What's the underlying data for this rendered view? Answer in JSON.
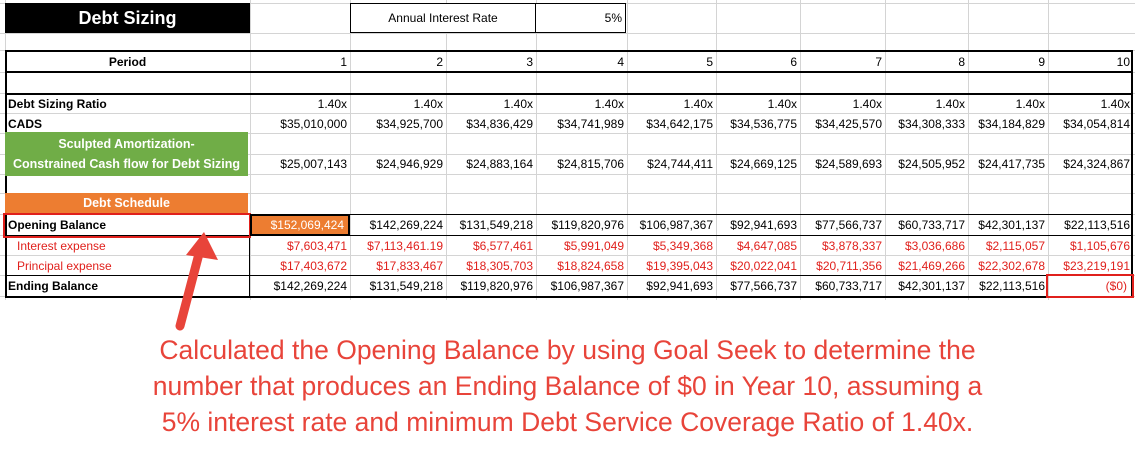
{
  "title": "Debt Sizing",
  "rate": {
    "label": "Annual Interest Rate",
    "value": "5%"
  },
  "period_label": "Period",
  "periods": [
    "1",
    "2",
    "3",
    "4",
    "5",
    "6",
    "7",
    "8",
    "9",
    "10"
  ],
  "rows": {
    "dscr": {
      "label": "Debt Sizing Ratio",
      "values": [
        "1.40x",
        "1.40x",
        "1.40x",
        "1.40x",
        "1.40x",
        "1.40x",
        "1.40x",
        "1.40x",
        "1.40x",
        "1.40x"
      ]
    },
    "cads": {
      "label": "CADS",
      "values": [
        "$35,010,000",
        "$34,925,700",
        "$34,836,429",
        "$34,741,989",
        "$34,642,175",
        "$34,536,775",
        "$34,425,570",
        "$34,308,333",
        "$34,184,829",
        "$34,054,814"
      ]
    },
    "sculpted": {
      "label_line1": "Sculpted Amortization-",
      "label_line2": "Constrained Cash flow for Debt Sizing",
      "values": [
        "$25,007,143",
        "$24,946,929",
        "$24,883,164",
        "$24,815,706",
        "$24,744,411",
        "$24,669,125",
        "$24,589,693",
        "$24,505,952",
        "$24,417,735",
        "$24,324,867"
      ]
    },
    "schedule_label": "Debt Schedule",
    "opening": {
      "label": "Opening Balance",
      "values": [
        "$152,069,424",
        "$142,269,224",
        "$131,549,218",
        "$119,820,976",
        "$106,987,367",
        "$92,941,693",
        "$77,566,737",
        "$60,733,717",
        "$42,301,137",
        "$22,113,516"
      ]
    },
    "interest": {
      "label": "Interest expense",
      "values": [
        "$7,603,471",
        "$7,113,461.19",
        "$6,577,461",
        "$5,991,049",
        "$5,349,368",
        "$4,647,085",
        "$3,878,337",
        "$3,036,686",
        "$2,115,057",
        "$1,105,676"
      ]
    },
    "principal": {
      "label": "Principal expense",
      "values": [
        "$17,403,672",
        "$17,833,467",
        "$18,305,703",
        "$18,824,658",
        "$19,395,043",
        "$20,022,041",
        "$20,711,356",
        "$21,469,266",
        "$22,302,678",
        "$23,219,191"
      ]
    },
    "ending": {
      "label": "Ending Balance",
      "values": [
        "$142,269,224",
        "$131,549,218",
        "$119,820,976",
        "$106,987,367",
        "$92,941,693",
        "$77,566,737",
        "$60,733,717",
        "$42,301,137",
        "$22,113,516",
        "($0)"
      ]
    }
  },
  "caption": [
    "Calculated the Opening Balance by using Goal Seek to determine the",
    "number that produces an Ending Balance of $0 in Year 10, assuming a",
    "5% interest rate and minimum Debt Service Coverage Ratio of 1.40x."
  ],
  "colors": {
    "green": "#70ad47",
    "orange": "#ed7d31",
    "red": "#e0201c"
  }
}
